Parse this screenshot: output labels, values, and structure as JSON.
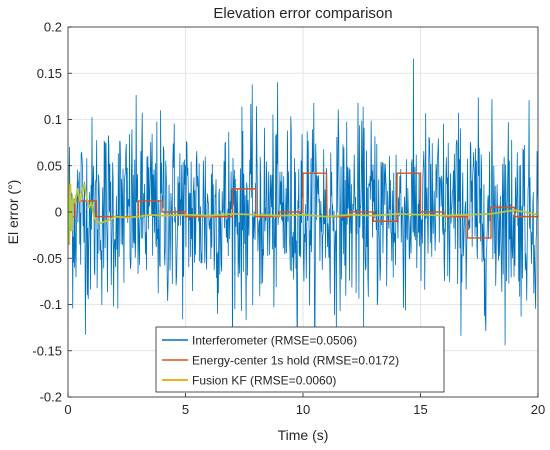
{
  "chart_data": {
    "type": "line",
    "title": "Elevation error comparison",
    "xlabel": "Time (s)",
    "ylabel": "El error (°)",
    "xlim": [
      0,
      20
    ],
    "ylim": [
      -0.2,
      0.2
    ],
    "xticks": [
      0,
      5,
      10,
      15,
      20
    ],
    "xtick_labels": [
      "0",
      "5",
      "10",
      "15",
      "20"
    ],
    "yticks": [
      -0.2,
      -0.15,
      -0.1,
      -0.05,
      0,
      0.05,
      0.1,
      0.15,
      0.2
    ],
    "ytick_labels": [
      "-0.2",
      "-0.15",
      "-0.1",
      "-0.05",
      "0",
      "0.05",
      "0.1",
      "0.15",
      "0.2"
    ],
    "grid": true,
    "legend_position": "bottom-center",
    "series": [
      {
        "name": "Interferometer (RMSE=0.0506)",
        "color": "#0072BD",
        "noise_std": 0.0506,
        "sample_interval_s": 0.02
      },
      {
        "name": "Energy-center 1s hold (RMSE=0.0172)",
        "color": "#D95319",
        "step_x": [
          0,
          0.3,
          1.2,
          2.0,
          3.0,
          4.0,
          5.0,
          6.0,
          7.0,
          8.0,
          9.0,
          10.0,
          11.0,
          12.0,
          13.0,
          14.0,
          15.0,
          16.0,
          17.0,
          18.0,
          19.0,
          20.0
        ],
        "step_y": [
          -0.005,
          0.012,
          -0.005,
          -0.005,
          0.012,
          0.0,
          -0.005,
          -0.005,
          0.025,
          -0.005,
          0.0,
          0.042,
          -0.005,
          0.0,
          -0.01,
          0.042,
          0.0,
          -0.005,
          -0.028,
          0.005,
          -0.005
        ]
      },
      {
        "name": "Fusion KF (RMSE=0.0060)",
        "color": "#EDB120",
        "x": [
          0,
          0.05,
          0.1,
          0.15,
          0.2,
          0.3,
          0.4,
          0.5,
          0.6,
          0.7,
          0.8,
          0.9,
          1.0,
          1.1,
          1.2,
          1.4,
          1.6,
          1.8,
          2.0,
          2.5,
          3.0,
          3.5,
          4.0,
          5.0,
          6.0,
          7.0,
          8.0,
          9.0,
          10.0,
          11.0,
          12.0,
          13.0,
          14.0,
          15.0,
          16.0,
          17.0,
          18.0,
          19.0,
          20.0
        ],
        "y": [
          0.05,
          -0.035,
          0.03,
          -0.02,
          0.015,
          0.01,
          0.025,
          0.012,
          0.02,
          0.03,
          0.015,
          0.005,
          0.01,
          -0.005,
          -0.01,
          -0.012,
          -0.01,
          -0.008,
          -0.005,
          -0.006,
          -0.005,
          -0.003,
          -0.004,
          -0.003,
          -0.004,
          -0.002,
          -0.003,
          -0.004,
          -0.003,
          -0.005,
          -0.003,
          -0.004,
          -0.002,
          -0.003,
          -0.004,
          -0.003,
          -0.002,
          0.002,
          -0.003
        ]
      }
    ]
  }
}
